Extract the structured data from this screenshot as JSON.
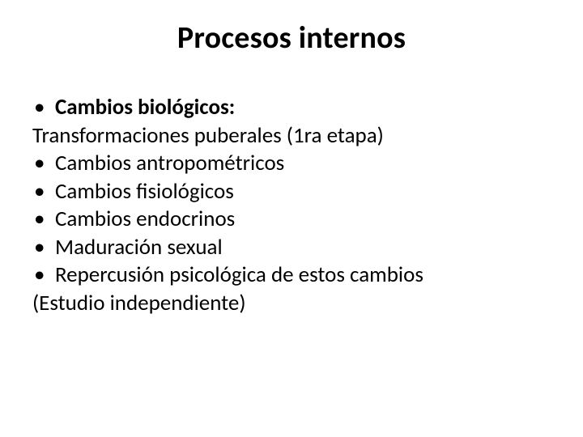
{
  "slide": {
    "title": "Procesos internos",
    "lines": {
      "l1": "Cambios biológicos:",
      "l2": "Transformaciones puberales (1ra etapa)",
      "l3": "Cambios antropométricos",
      "l4": "Cambios fisiológicos",
      "l5": "Cambios endocrinos",
      "l6": "Maduración sexual",
      "l7": "Repercusión psicológica de estos cambios",
      "l8": "(Estudio independiente)"
    }
  },
  "style": {
    "background_color": "#ffffff",
    "text_color": "#000000",
    "title_fontsize_pt": 28,
    "body_fontsize_pt": 20,
    "font_family": "Calibri",
    "bullet_glyph": "•"
  }
}
